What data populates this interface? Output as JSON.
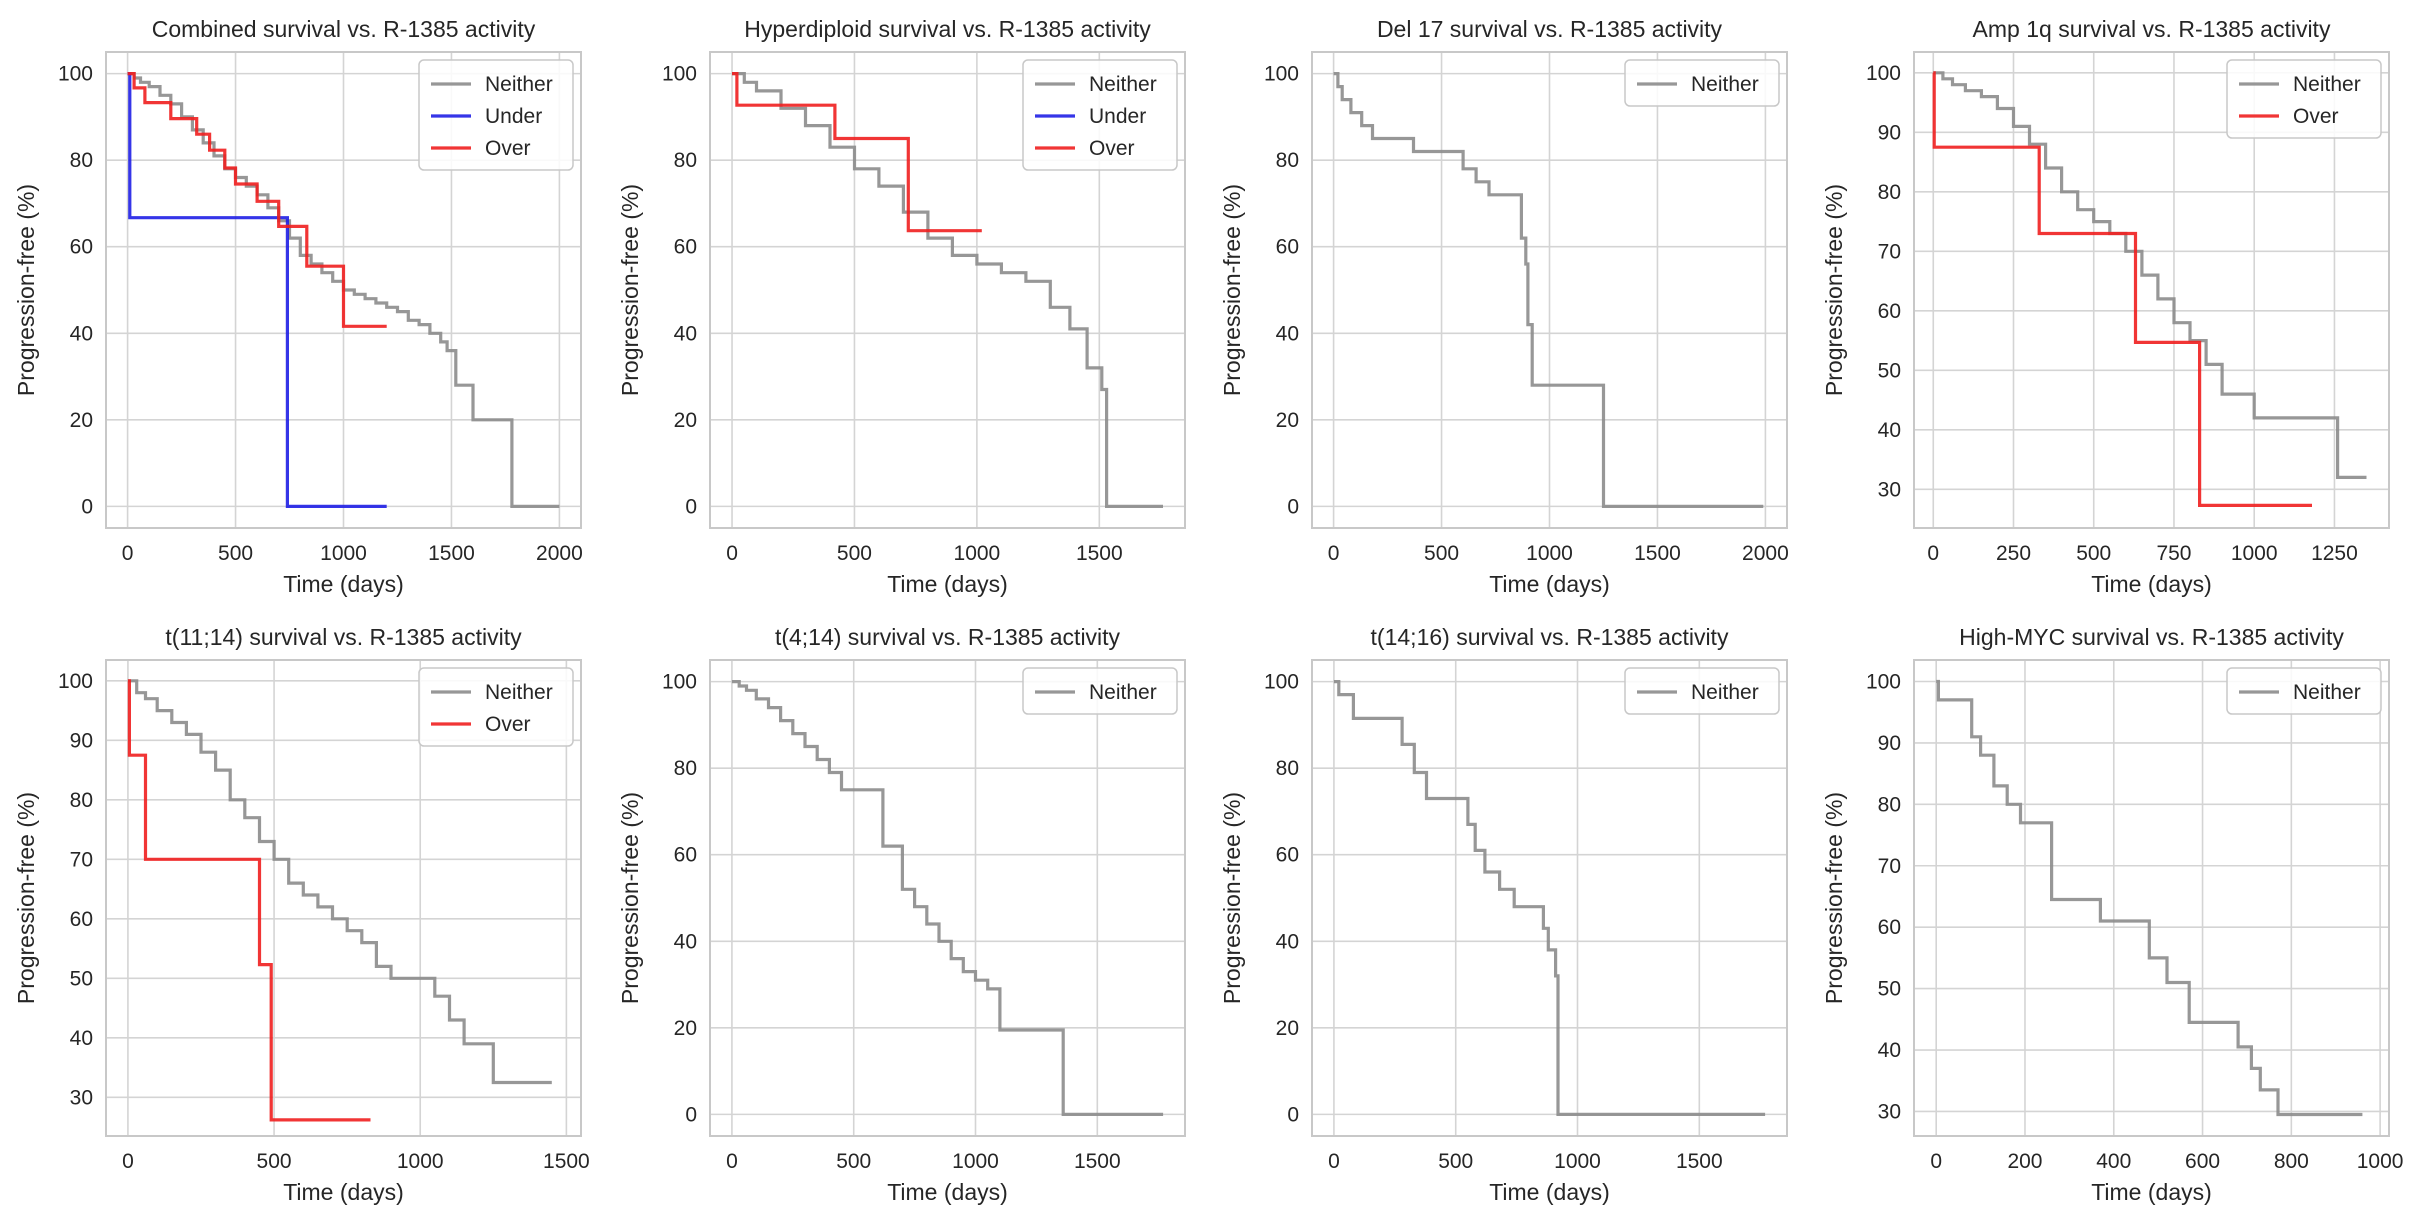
{
  "figure": {
    "ylabel": "Progression-free (%)",
    "xlabel": "Time (days)"
  },
  "colors": {
    "Neither": "#8c8c8c",
    "Under": "#1f1fe6",
    "Over": "#f01f1f",
    "grid": "#d4d4d4",
    "frame": "#c8c8c8"
  },
  "chart_data": [
    {
      "type": "line",
      "title": "Combined survival vs. R-1385 activity",
      "xlabel": "Time (days)",
      "ylabel": "Progression-free (%)",
      "xlim": [
        -100,
        2100
      ],
      "ylim": [
        -5,
        105
      ],
      "xticks": [
        0,
        500,
        1000,
        1500,
        2000
      ],
      "yticks": [
        0,
        20,
        40,
        60,
        80,
        100
      ],
      "legend": [
        "Neither",
        "Under",
        "Over"
      ],
      "series": [
        {
          "name": "Neither",
          "x": [
            0,
            30,
            60,
            100,
            150,
            200,
            250,
            300,
            350,
            400,
            450,
            500,
            550,
            600,
            650,
            700,
            750,
            800,
            850,
            900,
            950,
            1000,
            1050,
            1100,
            1150,
            1200,
            1250,
            1300,
            1350,
            1400,
            1450,
            1480,
            1520,
            1600,
            1700,
            1760,
            1780,
            2000
          ],
          "y": [
            100,
            99,
            98,
            97,
            95,
            93,
            90,
            87,
            84,
            81,
            78,
            76,
            74,
            72,
            69,
            66,
            62,
            58,
            56,
            54,
            52,
            50,
            49,
            48,
            47,
            46,
            45,
            43,
            42,
            40,
            38,
            36,
            28,
            20,
            20,
            20,
            0,
            0
          ]
        },
        {
          "name": "Under",
          "x": [
            0,
            10,
            740,
            1200
          ],
          "y": [
            100,
            66.7,
            0,
            0
          ]
        },
        {
          "name": "Over",
          "x": [
            0,
            30,
            80,
            200,
            320,
            380,
            450,
            500,
            600,
            700,
            830,
            1000,
            1200
          ],
          "y": [
            100,
            96.7,
            93.3,
            89.6,
            86,
            82.3,
            78.2,
            74.5,
            70.5,
            64.7,
            55.5,
            41.6,
            41.6
          ]
        }
      ]
    },
    {
      "type": "line",
      "title": "Hyperdiploid survival vs. R-1385 activity",
      "xlabel": "Time (days)",
      "ylabel": "Progression-free (%)",
      "xlim": [
        -90,
        1850
      ],
      "ylim": [
        -5,
        105
      ],
      "xticks": [
        0,
        500,
        1000,
        1500
      ],
      "yticks": [
        0,
        20,
        40,
        60,
        80,
        100
      ],
      "legend": [
        "Neither",
        "Under",
        "Over"
      ],
      "series": [
        {
          "name": "Neither",
          "x": [
            0,
            50,
            100,
            200,
            300,
            400,
            500,
            600,
            700,
            800,
            900,
            1000,
            1100,
            1200,
            1300,
            1380,
            1450,
            1510,
            1530,
            1760
          ],
          "y": [
            100,
            98,
            96,
            92,
            88,
            83,
            78,
            74,
            68,
            62,
            58,
            56,
            54,
            52,
            46,
            41,
            32,
            27,
            0,
            0
          ]
        },
        {
          "name": "Under",
          "x": [],
          "y": []
        },
        {
          "name": "Over",
          "x": [
            0,
            20,
            420,
            720,
            1020
          ],
          "y": [
            100,
            92.7,
            85,
            63.7,
            63.7
          ]
        }
      ]
    },
    {
      "type": "line",
      "title": "Del 17 survival vs. R-1385 activity",
      "xlabel": "Time (days)",
      "ylabel": "Progression-free (%)",
      "xlim": [
        -100,
        2100
      ],
      "ylim": [
        -5,
        105
      ],
      "xticks": [
        0,
        500,
        1000,
        1500,
        2000
      ],
      "yticks": [
        0,
        20,
        40,
        60,
        80,
        100
      ],
      "legend": [
        "Neither"
      ],
      "series": [
        {
          "name": "Neither",
          "x": [
            0,
            20,
            40,
            80,
            130,
            180,
            370,
            600,
            660,
            720,
            870,
            890,
            900,
            920,
            1250,
            1990
          ],
          "y": [
            100,
            97,
            94,
            91,
            88,
            85,
            82,
            78,
            75,
            72,
            62,
            56,
            42,
            28,
            0,
            0
          ]
        }
      ]
    },
    {
      "type": "line",
      "title": "Amp 1q survival vs. R-1385 activity",
      "xlabel": "Time (days)",
      "ylabel": "Progression-free (%)",
      "xlim": [
        -60,
        1420
      ],
      "ylim": [
        23.5,
        103.5
      ],
      "xticks": [
        0,
        250,
        500,
        750,
        1000,
        1250
      ],
      "yticks": [
        30,
        40,
        50,
        60,
        70,
        80,
        90,
        100
      ],
      "legend": [
        "Neither",
        "Over"
      ],
      "series": [
        {
          "name": "Neither",
          "x": [
            0,
            30,
            60,
            100,
            150,
            200,
            250,
            300,
            350,
            400,
            450,
            500,
            550,
            600,
            650,
            700,
            750,
            800,
            850,
            900,
            1000,
            1250,
            1260,
            1350
          ],
          "y": [
            100,
            99,
            98,
            97,
            96,
            94,
            91,
            88,
            84,
            80,
            77,
            75,
            73,
            70,
            66,
            62,
            58,
            55,
            51,
            46,
            42,
            42,
            32,
            32
          ]
        },
        {
          "name": "Over",
          "x": [
            0,
            3,
            330,
            630,
            830,
            1180
          ],
          "y": [
            100,
            87.5,
            73,
            54.7,
            27.3,
            27.3
          ]
        }
      ]
    },
    {
      "type": "line",
      "title": "t(11;14) survival vs. R-1385 activity",
      "xlabel": "Time (days)",
      "ylabel": "Progression-free (%)",
      "xlim": [
        -75,
        1550
      ],
      "ylim": [
        23.5,
        103.5
      ],
      "xticks": [
        0,
        500,
        1000,
        1500
      ],
      "yticks": [
        30,
        40,
        50,
        60,
        70,
        80,
        90,
        100
      ],
      "legend": [
        "Neither",
        "Over"
      ],
      "series": [
        {
          "name": "Neither",
          "x": [
            0,
            30,
            60,
            100,
            150,
            200,
            250,
            300,
            350,
            400,
            450,
            500,
            550,
            600,
            650,
            700,
            750,
            800,
            850,
            900,
            1000,
            1050,
            1100,
            1150,
            1250,
            1450
          ],
          "y": [
            100,
            98,
            97,
            95,
            93,
            91,
            88,
            85,
            80,
            77,
            73,
            70,
            66,
            64,
            62,
            60,
            58,
            56,
            52,
            50,
            50,
            47,
            43,
            39,
            32.5,
            32.5
          ]
        },
        {
          "name": "Over",
          "x": [
            0,
            5,
            60,
            450,
            490,
            830
          ],
          "y": [
            100,
            87.5,
            70,
            52.3,
            26.2,
            26.2
          ]
        }
      ]
    },
    {
      "type": "line",
      "title": "t(4;14) survival vs. R-1385 activity",
      "xlabel": "Time (days)",
      "ylabel": "Progression-free (%)",
      "xlim": [
        -90,
        1860
      ],
      "ylim": [
        -5,
        105
      ],
      "xticks": [
        0,
        500,
        1000,
        1500
      ],
      "yticks": [
        0,
        20,
        40,
        60,
        80,
        100
      ],
      "legend": [
        "Neither"
      ],
      "series": [
        {
          "name": "Neither",
          "x": [
            0,
            30,
            60,
            100,
            150,
            200,
            250,
            300,
            350,
            400,
            450,
            600,
            620,
            700,
            750,
            800,
            850,
            900,
            950,
            1000,
            1050,
            1100,
            1350,
            1360,
            1770
          ],
          "y": [
            100,
            99,
            98,
            96,
            94,
            91,
            88,
            85,
            82,
            79,
            75,
            75,
            62,
            52,
            48,
            44,
            40,
            36,
            33,
            31,
            29,
            19.5,
            19.5,
            0,
            0
          ]
        }
      ]
    },
    {
      "type": "line",
      "title": "t(14;16) survival vs. R-1385 activity",
      "xlabel": "Time (days)",
      "ylabel": "Progression-free (%)",
      "xlim": [
        -90,
        1860
      ],
      "ylim": [
        -5,
        105
      ],
      "xticks": [
        0,
        500,
        1000,
        1500
      ],
      "yticks": [
        0,
        20,
        40,
        60,
        80,
        100
      ],
      "legend": [
        "Neither"
      ],
      "series": [
        {
          "name": "Neither",
          "x": [
            0,
            20,
            80,
            280,
            330,
            380,
            550,
            580,
            620,
            680,
            740,
            860,
            880,
            910,
            920,
            1770
          ],
          "y": [
            100,
            97,
            91.5,
            85.5,
            79,
            73,
            67,
            61,
            56,
            52,
            48,
            43,
            38,
            32,
            0,
            0
          ]
        }
      ]
    },
    {
      "type": "line",
      "title": "High-MYC survival vs. R-1385 activity",
      "xlabel": "Time (days)",
      "ylabel": "Progression-free (%)",
      "xlim": [
        -50,
        1020
      ],
      "ylim": [
        26,
        103.5
      ],
      "xticks": [
        0,
        200,
        400,
        600,
        800,
        1000
      ],
      "yticks": [
        30,
        40,
        50,
        60,
        70,
        80,
        90,
        100
      ],
      "legend": [
        "Neither"
      ],
      "series": [
        {
          "name": "Neither",
          "x": [
            0,
            5,
            80,
            100,
            130,
            160,
            190,
            260,
            370,
            480,
            520,
            570,
            680,
            710,
            730,
            770,
            960
          ],
          "y": [
            100,
            97,
            91,
            88,
            83,
            80,
            77,
            64.5,
            61,
            55,
            51,
            44.5,
            40.5,
            37,
            33.5,
            29.5,
            29.5
          ]
        }
      ]
    }
  ]
}
